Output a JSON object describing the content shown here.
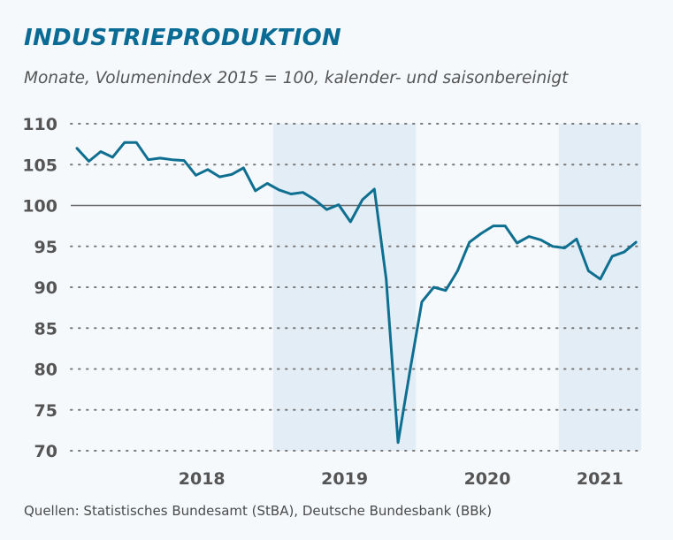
{
  "chart_data": {
    "type": "line",
    "title": "INDUSTRIEPRODUKTION",
    "subtitle": "Monate, Volumenindex 2015 = 100, kalender- und saisonbereinigt",
    "source": "Quellen: Statistisches Bundesamt (StBA), Deutsche Bundesbank (BBk)",
    "ylim": [
      70,
      110
    ],
    "yticks": [
      "110",
      "105",
      "100",
      "95",
      "90",
      "85",
      "80",
      "75",
      "70"
    ],
    "ytick_values": [
      110,
      105,
      100,
      95,
      90,
      85,
      80,
      75,
      70
    ],
    "reference_line": 100,
    "grid": "horizontal dotted",
    "xaxis_years": [
      "2018",
      "2019",
      "2020",
      "2021"
    ],
    "shaded_years": [
      "2019",
      "2021"
    ],
    "x_start": "2017-08",
    "colors": {
      "line": "#0e6f90",
      "shade": "#e3edf5",
      "grid": "#7a7a7a",
      "reference": "#6a6a6a"
    },
    "series": [
      {
        "values": [
          107.0,
          105.4,
          106.6,
          105.9,
          107.7,
          107.7,
          105.6,
          105.8,
          105.6,
          105.5,
          103.7,
          104.4,
          103.5,
          103.8,
          104.6,
          101.8,
          102.7,
          101.9,
          101.4,
          101.6,
          100.7,
          99.5,
          100.1,
          98.0,
          100.7,
          102.0,
          91.0,
          71.0,
          79.8,
          88.2,
          90.0,
          89.6,
          92.0,
          95.5,
          96.6,
          97.5,
          97.5,
          95.4,
          96.2,
          95.8,
          95.0,
          94.8,
          95.9,
          92.0,
          91.0,
          93.8,
          94.3,
          95.5
        ]
      }
    ]
  }
}
